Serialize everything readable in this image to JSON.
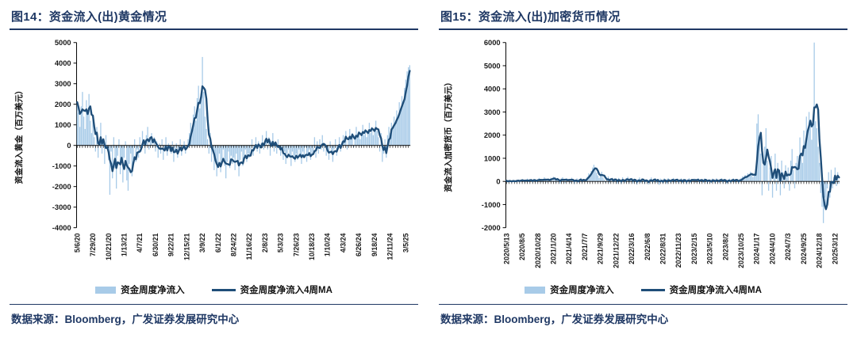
{
  "style": {
    "accent": "#1F3864",
    "text": "#1a1a1a"
  },
  "panels": [
    {
      "title": "图14：资金流入(出)黄金情况",
      "source": "数据来源：Bloomberg，广发证券发展研究中心",
      "chart_data": {
        "type": "bar",
        "title": "图14：资金流入(出)黄金情况",
        "ylabel": "资金流入黄金（百万美元）",
        "ylim": [
          -4000,
          5000
        ],
        "ytick_step": 1000,
        "grid": false,
        "legend_position": "bottom",
        "legend": [
          "资金周度净流入",
          "资金周度净流入4周MA"
        ],
        "bar_color": "#A8CBE8",
        "line_color": "#1F4E79",
        "ma_window": 4,
        "x_tick_interval": 12,
        "x_tick_labels": [
          "5/6/20",
          "7/29/20",
          "10/21/20",
          "1/13/21",
          "4/7/21",
          "6/30/21",
          "9/22/21",
          "12/15/21",
          "3/9/22",
          "6/1/22",
          "8/24/22",
          "11/16/22",
          "2/8/23",
          "5/3/23",
          "7/26/23",
          "10/18/23",
          "1/10/24",
          "4/3/24",
          "6/26/24",
          "9/18/24",
          "12/11/24",
          "3/5/25"
        ],
        "series": [
          {
            "name": "资金周度净流入",
            "values": [
              2100,
              1600,
              900,
              1900,
              2600,
              1400,
              800,
              2200,
              1700,
              2500,
              1200,
              600,
              1500,
              400,
              -300,
              900,
              -600,
              200,
              1100,
              -400,
              300,
              -900,
              500,
              -200,
              -700,
              -2400,
              -300,
              -1600,
              400,
              -1100,
              -2100,
              -500,
              300,
              -1400,
              -800,
              -1800,
              -600,
              200,
              -1700,
              -2200,
              -900,
              -400,
              -1500,
              -700,
              300,
              -800,
              -200,
              -600,
              400,
              -300,
              700,
              200,
              -400,
              500,
              900,
              -200,
              300,
              600,
              -100,
              400,
              -300,
              200,
              -600,
              100,
              -400,
              300,
              -700,
              -200,
              400,
              -500,
              100,
              -300,
              -400,
              200,
              -800,
              -300,
              100,
              -600,
              -200,
              300,
              -500,
              -100,
              200,
              -400,
              -200,
              300,
              600,
              1100,
              800,
              1500,
              1900,
              1200,
              2300,
              2900,
              1800,
              2500,
              4300,
              2600,
              1400,
              800,
              300,
              -400,
              600,
              -800,
              -300,
              -1200,
              -600,
              -1500,
              -900,
              -400,
              -1300,
              -700,
              -200,
              -1000,
              -1600,
              -800,
              -300,
              -1100,
              -500,
              -900,
              -600,
              -1200,
              -400,
              -800,
              -1500,
              -700,
              -300,
              -1000,
              -500,
              -200,
              -800,
              -400,
              -600,
              -200,
              300,
              -500,
              -100,
              400,
              -300,
              200,
              -400,
              100,
              500,
              -200,
              300,
              700,
              -200,
              400,
              -500,
              200,
              600,
              -300,
              100,
              -400,
              300,
              -200,
              -500,
              -100,
              -700,
              -300,
              -900,
              -400,
              -200,
              -600,
              -1000,
              -300,
              -500,
              -800,
              -400,
              -700,
              -200,
              -500,
              -900,
              -300,
              -600,
              -100,
              -800,
              -400,
              -200,
              -700,
              -500,
              -300,
              400,
              -600,
              200,
              -400,
              300,
              -200,
              500,
              -300,
              100,
              -500,
              -300,
              -700,
              200,
              -400,
              -800,
              -200,
              300,
              -500,
              -100,
              400,
              -300,
              200,
              500,
              300,
              700,
              -200,
              400,
              800,
              300,
              600,
              -100,
              500,
              900,
              400,
              700,
              300,
              600,
              1000,
              500,
              800,
              400,
              700,
              1100,
              600,
              900,
              500,
              800,
              1200,
              700,
              400,
              -300,
              600,
              -800,
              -400,
              300,
              -600,
              500,
              900,
              600,
              1100,
              800,
              1400,
              1000,
              1700,
              1300,
              2100,
              1800,
              2400,
              2000,
              2800,
              3200,
              3600,
              3800,
              3900
            ]
          },
          {
            "name": "资金周度净流入4周MA",
            "derived": "4-week moving average of weekly net inflow"
          }
        ]
      }
    },
    {
      "title": "图15：资金流入(出)加密货币情况",
      "source": "数据来源：Bloomberg，广发证券发展研究中心",
      "chart_data": {
        "type": "bar",
        "title": "图15：资金流入(出)加密货币情况",
        "ylabel": "资金流入加密货币（百万美元）",
        "ylim": [
          -2000,
          6000
        ],
        "ytick_step": 1000,
        "grid": false,
        "legend_position": "bottom",
        "legend": [
          "资金周度净流入",
          "资金周度净流入4周MA"
        ],
        "bar_color": "#A8CBE8",
        "line_color": "#1F4E79",
        "ma_window": 4,
        "x_tick_interval": 12,
        "x_tick_labels": [
          "2020/5/13",
          "2020/8/5",
          "2020/10/28",
          "2021/1/20",
          "2021/4/14",
          "2021/7/7",
          "2021/9/29",
          "2021/12/22",
          "2022/3/16",
          "2022/6/8",
          "2022/8/31",
          "2022/11/23",
          "2023/2/15",
          "2023/5/10",
          "2023/8/2",
          "2023/10/25",
          "2024/1/17",
          "2024/4/10",
          "2024/7/3",
          "2024/9/25",
          "2024/12/18",
          "2025/3/12"
        ],
        "series": [
          {
            "name": "资金周度净流入",
            "values": [
              30,
              -20,
              50,
              10,
              -40,
              60,
              20,
              -10,
              40,
              80,
              -30,
              50,
              100,
              40,
              -50,
              70,
              120,
              -30,
              60,
              90,
              -40,
              110,
              50,
              -20,
              80,
              150,
              60,
              -40,
              100,
              180,
              70,
              -50,
              120,
              90,
              160,
              40,
              200,
              120,
              -60,
              150,
              80,
              -100,
              130,
              180,
              60,
              -80,
              140,
              90,
              110,
              -70,
              160,
              80,
              -120,
              60,
              130,
              -50,
              90,
              150,
              -60,
              100,
              40,
              120,
              200,
              350,
              280,
              450,
              600,
              720,
              500,
              380,
              260,
              150,
              300,
              420,
              180,
              90,
              -60,
              130,
              220,
              -80,
              100,
              160,
              -40,
              120,
              80,
              -100,
              150,
              60,
              -120,
              180,
              90,
              -60,
              140,
              200,
              -80,
              110,
              150,
              -90,
              120,
              60,
              -140,
              100,
              170,
              -70,
              130,
              80,
              -110,
              90,
              60,
              -130,
              110,
              170,
              -80,
              90,
              140,
              -60,
              100,
              -150,
              120,
              70,
              -90,
              130,
              60,
              -110,
              140,
              80,
              -70,
              100,
              150,
              -60,
              90,
              120,
              -100,
              70,
              130,
              -80,
              110,
              60,
              -120,
              90,
              140,
              -70,
              100,
              80,
              120,
              -60,
              90,
              140,
              -90,
              70,
              110,
              -50,
              130,
              80,
              -100,
              60,
              90,
              -70,
              120,
              50,
              -90,
              130,
              70,
              -60,
              100,
              140,
              -80,
              90,
              60,
              -110,
              80,
              120,
              -70,
              90,
              130,
              -50,
              100,
              60,
              -90,
              110,
              150,
              220,
              90,
              280,
              180,
              350,
              240,
              420,
              300,
              190,
              260,
              380,
              2500,
              2900,
              1800,
              1200,
              -600,
              800,
              1500,
              2300,
              900,
              -400,
              600,
              1100,
              -700,
              500,
              1200,
              -400,
              800,
              300,
              -600,
              900,
              400,
              -300,
              700,
              200,
              600,
              -400,
              900,
              1400,
              500,
              -300,
              800,
              1100,
              600,
              1900,
              1200,
              800,
              2200,
              1600,
              2800,
              2100,
              3000,
              2600,
              1800,
              2400,
              6000,
              2600,
              2300,
              1500,
              800,
              -500,
              -1100,
              -1800,
              -700,
              -1200,
              -300,
              400,
              -700,
              500,
              -300,
              200,
              600,
              -200,
              400,
              -100
            ]
          },
          {
            "name": "资金周度净流入4周MA",
            "derived": "4-week moving average of weekly net inflow"
          }
        ]
      }
    }
  ]
}
